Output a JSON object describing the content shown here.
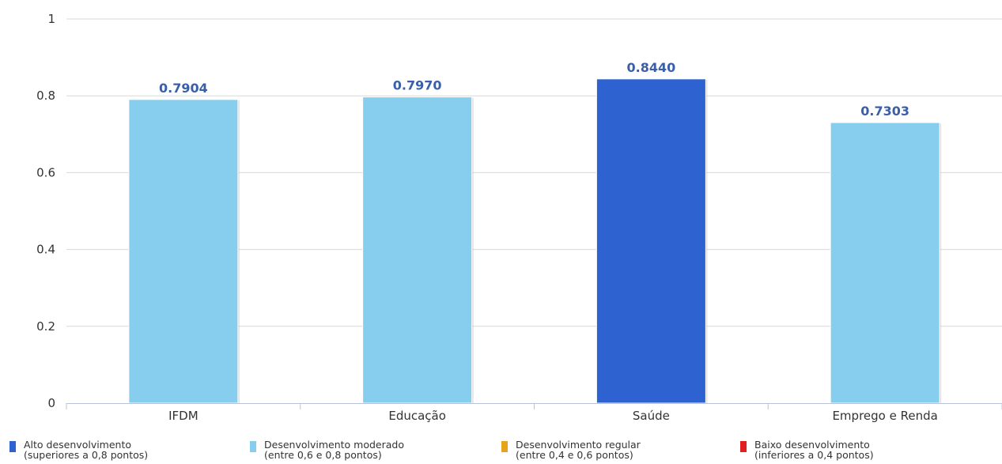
{
  "chart_data": {
    "type": "bar",
    "categories": [
      "IFDM",
      "Educação",
      "Saúde",
      "Emprego e Renda"
    ],
    "values": [
      0.7904,
      0.797,
      0.844,
      0.7303
    ],
    "data_labels": [
      "0.7904",
      "0.7970",
      "0.8440",
      "0.7303"
    ],
    "bar_colors": [
      "#87ceee",
      "#87ceee",
      "#2e62d1",
      "#87ceee"
    ],
    "ylim": [
      0,
      1
    ],
    "yticks": [
      0,
      0.2,
      0.4,
      0.6,
      0.8,
      1
    ],
    "ytick_labels": [
      "0",
      "0.2",
      "0.4",
      "0.6",
      "0.8",
      "1"
    ],
    "grid": true,
    "legend_position": "bottom",
    "legend": [
      {
        "line1": "Alto desenvolvimento",
        "line2": "(superiores a 0,8 pontos)",
        "color": "#2e62d1"
      },
      {
        "line1": "Desenvolvimento moderado",
        "line2": "(entre 0,6 e 0,8 pontos)",
        "color": "#87ceee"
      },
      {
        "line1": "Desenvolvimento regular",
        "line2": "(entre 0,4 e 0,6 pontos)",
        "color": "#e8a31c"
      },
      {
        "line1": "Baixo desenvolvimento",
        "line2": "(inferiores a 0,4 pontos)",
        "color": "#e02020"
      }
    ]
  }
}
